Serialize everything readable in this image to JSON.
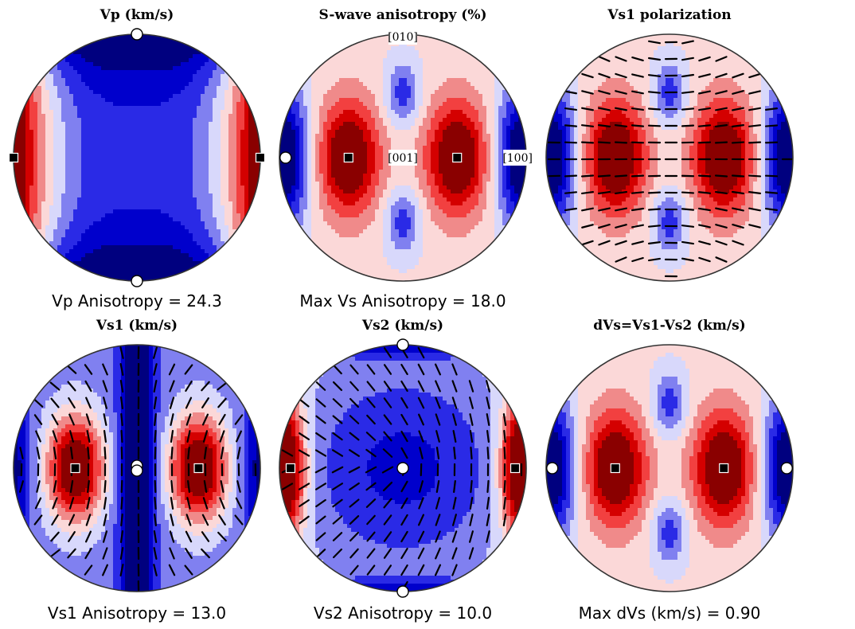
{
  "figure": {
    "background": "#ffffff"
  },
  "chart_data": [
    {
      "id": "vp",
      "type": "heatmap",
      "title": "Vp (km/s)",
      "caption": "Vp Anisotropy = 24.3",
      "field": "vp",
      "levels": 10,
      "markers": [
        {
          "symbol": "circle",
          "az": 90,
          "r": 1.0
        },
        {
          "symbol": "circle",
          "az": 270,
          "r": 1.0
        },
        {
          "symbol": "square",
          "az": 0,
          "r": 1.0
        },
        {
          "symbol": "square",
          "az": 180,
          "r": 1.0
        }
      ],
      "axis_labels": [],
      "ticks": false
    },
    {
      "id": "s-aniso",
      "type": "heatmap",
      "title": "S-wave anisotropy (%)",
      "caption": "Max Vs Anisotropy = 18.0",
      "field": "saniso",
      "levels": 10,
      "markers": [
        {
          "symbol": "circle",
          "az": 180,
          "r": 0.95
        },
        {
          "symbol": "square",
          "az": 180,
          "r": 0.44
        },
        {
          "symbol": "square",
          "az": 0,
          "r": 0.44
        }
      ],
      "axis_labels": [
        {
          "text": "[010]",
          "az": 90,
          "r": 0.98
        },
        {
          "text": "[001]",
          "az": 0,
          "r": 0.0
        },
        {
          "text": "[100]",
          "az": 0,
          "r": 0.93
        }
      ],
      "ticks": false
    },
    {
      "id": "vs1-pol",
      "type": "heatmap",
      "title": "Vs1 polarization",
      "caption": "",
      "field": "saniso",
      "levels": 10,
      "markers": [],
      "axis_labels": [],
      "ticks": true,
      "tick_style": "horizontal"
    },
    {
      "id": "vs1",
      "type": "heatmap",
      "title": "Vs1 (km/s)",
      "caption": "Vs1 Anisotropy = 13.0",
      "field": "vs1",
      "levels": 10,
      "markers": [
        {
          "symbol": "circle",
          "az": 90,
          "r": 0.02
        },
        {
          "symbol": "circle",
          "az": 270,
          "r": 0.02
        },
        {
          "symbol": "square",
          "az": 180,
          "r": 0.5
        },
        {
          "symbol": "square",
          "az": 0,
          "r": 0.5
        }
      ],
      "axis_labels": [],
      "ticks": true,
      "tick_style": "curved"
    },
    {
      "id": "vs2",
      "type": "heatmap",
      "title": "Vs2 (km/s)",
      "caption": "Vs2 Anisotropy = 10.0",
      "field": "vs2",
      "levels": 10,
      "markers": [
        {
          "symbol": "circle",
          "az": 90,
          "r": 1.0
        },
        {
          "symbol": "circle",
          "az": 270,
          "r": 1.0
        },
        {
          "symbol": "circle",
          "az": 0,
          "r": 0.0
        },
        {
          "symbol": "square",
          "az": 180,
          "r": 0.91
        },
        {
          "symbol": "square",
          "az": 0,
          "r": 0.91
        }
      ],
      "axis_labels": [],
      "ticks": true,
      "tick_style": "radial"
    },
    {
      "id": "dvs",
      "type": "heatmap",
      "title": "dVs=Vs1-Vs2 (km/s)",
      "caption": "Max dVs (km/s) = 0.90",
      "field": "saniso",
      "levels": 10,
      "markers": [
        {
          "symbol": "circle",
          "az": 180,
          "r": 0.95
        },
        {
          "symbol": "circle",
          "az": 0,
          "r": 0.95
        },
        {
          "symbol": "square",
          "az": 180,
          "r": 0.44
        },
        {
          "symbol": "square",
          "az": 0,
          "r": 0.44
        }
      ],
      "axis_labels": [],
      "ticks": false
    }
  ],
  "colormap": [
    "#00007f",
    "#0000cc",
    "#2a2ae6",
    "#8080f0",
    "#d8d8fb",
    "#fbd8d8",
    "#f08a8a",
    "#f24040",
    "#d40000",
    "#8a0000"
  ]
}
